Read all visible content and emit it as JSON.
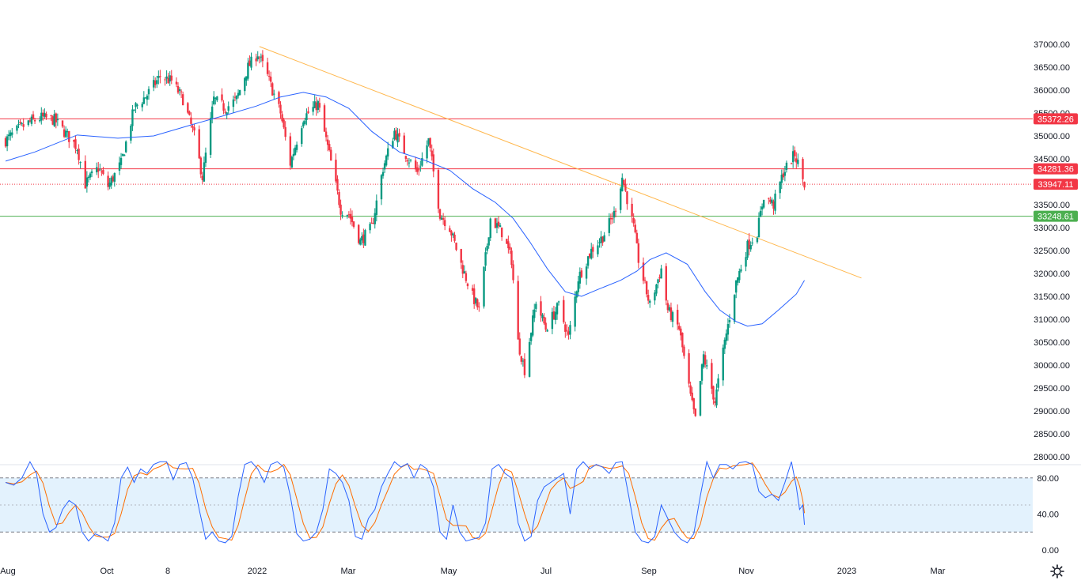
{
  "chart_data": [
    {
      "type": "candlestick",
      "price_axis": {
        "ylim": [
          28000,
          37000
        ],
        "ticks": [
          "37000.00",
          "36500.00",
          "36000.00",
          "35500.00",
          "35000.00",
          "34500.00",
          "34000.00",
          "33500.00",
          "33000.00",
          "32500.00",
          "32000.00",
          "31500.00",
          "31000.00",
          "30500.00",
          "30000.00",
          "29500.00",
          "29000.00",
          "28500.00",
          "28000.00"
        ]
      },
      "time_axis": {
        "ticks": [
          "Aug",
          "Oct",
          "8",
          "2022",
          "Mar",
          "May",
          "Jul",
          "Sep",
          "Nov",
          "2023",
          "Mar"
        ]
      },
      "close_path": [
        [
          "2021-08-02",
          34900
        ],
        [
          "2021-08-10",
          35150
        ],
        [
          "2021-08-17",
          35300
        ],
        [
          "2021-08-24",
          35400
        ],
        [
          "2021-09-01",
          35350
        ],
        [
          "2021-09-08",
          35050
        ],
        [
          "2021-09-15",
          34750
        ],
        [
          "2021-09-20",
          33950
        ],
        [
          "2021-09-28",
          34300
        ],
        [
          "2021-10-04",
          33900
        ],
        [
          "2021-10-12",
          34400
        ],
        [
          "2021-10-20",
          35600
        ],
        [
          "2021-10-28",
          35900
        ],
        [
          "2021-11-05",
          36300
        ],
        [
          "2021-11-12",
          36200
        ],
        [
          "2021-11-19",
          35800
        ],
        [
          "2021-11-26",
          35000
        ],
        [
          "2021-12-01",
          34100
        ],
        [
          "2021-12-08",
          35800
        ],
        [
          "2021-12-15",
          35600
        ],
        [
          "2021-12-22",
          35800
        ],
        [
          "2021-12-29",
          36500
        ],
        [
          "2022-01-04",
          36800
        ],
        [
          "2022-01-10",
          36300
        ],
        [
          "2022-01-18",
          35500
        ],
        [
          "2022-01-24",
          34400
        ],
        [
          "2022-02-01",
          35400
        ],
        [
          "2022-02-10",
          35700
        ],
        [
          "2022-02-17",
          34600
        ],
        [
          "2022-02-24",
          33400
        ],
        [
          "2022-03-01",
          33300
        ],
        [
          "2022-03-08",
          32700
        ],
        [
          "2022-03-15",
          33000
        ],
        [
          "2022-03-22",
          34300
        ],
        [
          "2022-03-29",
          35100
        ],
        [
          "2022-04-05",
          34600
        ],
        [
          "2022-04-12",
          34200
        ],
        [
          "2022-04-19",
          34900
        ],
        [
          "2022-04-26",
          33300
        ],
        [
          "2022-05-02",
          33000
        ],
        [
          "2022-05-09",
          32200
        ],
        [
          "2022-05-16",
          31500
        ],
        [
          "2022-05-20",
          31200
        ],
        [
          "2022-05-27",
          33200
        ],
        [
          "2022-06-03",
          32900
        ],
        [
          "2022-06-09",
          32300
        ],
        [
          "2022-06-13",
          30500
        ],
        [
          "2022-06-17",
          29900
        ],
        [
          "2022-06-24",
          31400
        ],
        [
          "2022-06-30",
          30800
        ],
        [
          "2022-07-08",
          31300
        ],
        [
          "2022-07-14",
          30600
        ],
        [
          "2022-07-20",
          31900
        ],
        [
          "2022-07-28",
          32500
        ],
        [
          "2022-08-04",
          32800
        ],
        [
          "2022-08-11",
          33300
        ],
        [
          "2022-08-16",
          34100
        ],
        [
          "2022-08-23",
          33000
        ],
        [
          "2022-08-26",
          32300
        ],
        [
          "2022-09-02",
          31300
        ],
        [
          "2022-09-09",
          32100
        ],
        [
          "2022-09-13",
          31200
        ],
        [
          "2022-09-20",
          30800
        ],
        [
          "2022-09-27",
          29300
        ],
        [
          "2022-09-30",
          28800
        ],
        [
          "2022-10-05",
          30200
        ],
        [
          "2022-10-12",
          29200
        ],
        [
          "2022-10-18",
          30500
        ],
        [
          "2022-10-25",
          31800
        ],
        [
          "2022-11-01",
          32600
        ],
        [
          "2022-11-07",
          32900
        ],
        [
          "2022-11-11",
          33700
        ],
        [
          "2022-11-17",
          33500
        ],
        [
          "2022-11-23",
          34200
        ],
        [
          "2022-11-30",
          34600
        ],
        [
          "2022-12-02",
          34400
        ],
        [
          "2022-12-06",
          33947
        ]
      ],
      "horizontal_levels": [
        {
          "label": "35372.26",
          "value": 35372.26,
          "color": "#f23645",
          "style": "solid"
        },
        {
          "label": "34281.36",
          "value": 34281.36,
          "color": "#f23645",
          "style": "solid"
        },
        {
          "label": "33947.11",
          "value": 33947.11,
          "color": "#f23645",
          "style": "dotted"
        },
        {
          "label": "33248.61",
          "value": 33248.61,
          "color": "#4caf50",
          "style": "solid"
        }
      ],
      "trendline": {
        "from": [
          "2022-01-05",
          36950
        ],
        "to": [
          "2023-01-10",
          31900
        ],
        "color": "#ffb74d"
      },
      "moving_average": {
        "color": "#2962ff",
        "points": [
          [
            "2021-08-02",
            34450
          ],
          [
            "2021-08-20",
            34650
          ],
          [
            "2021-09-15",
            35020
          ],
          [
            "2021-10-10",
            34950
          ],
          [
            "2021-11-01",
            35000
          ],
          [
            "2021-11-25",
            35250
          ],
          [
            "2021-12-15",
            35450
          ],
          [
            "2022-01-03",
            35650
          ],
          [
            "2022-01-18",
            35850
          ],
          [
            "2022-02-01",
            35950
          ],
          [
            "2022-02-15",
            35850
          ],
          [
            "2022-03-01",
            35600
          ],
          [
            "2022-03-15",
            35100
          ],
          [
            "2022-04-01",
            34650
          ],
          [
            "2022-04-18",
            34450
          ],
          [
            "2022-05-02",
            34250
          ],
          [
            "2022-05-16",
            33850
          ],
          [
            "2022-05-30",
            33550
          ],
          [
            "2022-06-10",
            33200
          ],
          [
            "2022-06-20",
            32700
          ],
          [
            "2022-07-01",
            32100
          ],
          [
            "2022-07-12",
            31600
          ],
          [
            "2022-07-22",
            31500
          ],
          [
            "2022-08-01",
            31650
          ],
          [
            "2022-08-15",
            31850
          ],
          [
            "2022-08-25",
            32050
          ],
          [
            "2022-09-02",
            32300
          ],
          [
            "2022-09-12",
            32450
          ],
          [
            "2022-09-25",
            32200
          ],
          [
            "2022-10-06",
            31600
          ],
          [
            "2022-10-15",
            31200
          ],
          [
            "2022-10-25",
            30950
          ],
          [
            "2022-11-01",
            30850
          ],
          [
            "2022-11-10",
            30900
          ],
          [
            "2022-11-20",
            31200
          ],
          [
            "2022-12-01",
            31550
          ],
          [
            "2022-12-06",
            31850
          ]
        ]
      },
      "x_domain": [
        "2021-07-15",
        "2023-04-10"
      ]
    },
    {
      "type": "line",
      "name": "oscillator",
      "ylim": [
        0,
        100
      ],
      "ticks": [
        "80.00",
        "40.00",
        "0.00"
      ],
      "band": [
        20,
        80
      ],
      "midline": 50,
      "fill_color": "#e3f2fd",
      "k_color": "#2962ff",
      "d_color": "#ff6d00",
      "points": [
        [
          "2021-08-02",
          75
        ],
        [
          "2021-08-07",
          72
        ],
        [
          "2021-08-12",
          80
        ],
        [
          "2021-08-17",
          98
        ],
        [
          "2021-08-21",
          85
        ],
        [
          "2021-08-25",
          40
        ],
        [
          "2021-08-29",
          20
        ],
        [
          "2021-09-02",
          25
        ],
        [
          "2021-09-06",
          45
        ],
        [
          "2021-09-10",
          55
        ],
        [
          "2021-09-14",
          50
        ],
        [
          "2021-09-18",
          20
        ],
        [
          "2021-09-22",
          10
        ],
        [
          "2021-09-26",
          18
        ],
        [
          "2021-09-30",
          15
        ],
        [
          "2021-10-04",
          10
        ],
        [
          "2021-10-08",
          30
        ],
        [
          "2021-10-12",
          80
        ],
        [
          "2021-10-16",
          92
        ],
        [
          "2021-10-20",
          75
        ],
        [
          "2021-10-24",
          90
        ],
        [
          "2021-10-28",
          85
        ],
        [
          "2021-11-01",
          95
        ],
        [
          "2021-11-05",
          98
        ],
        [
          "2021-11-09",
          98
        ],
        [
          "2021-11-13",
          78
        ],
        [
          "2021-11-17",
          95
        ],
        [
          "2021-11-21",
          97
        ],
        [
          "2021-11-25",
          80
        ],
        [
          "2021-11-29",
          45
        ],
        [
          "2021-12-03",
          12
        ],
        [
          "2021-12-07",
          20
        ],
        [
          "2021-12-11",
          10
        ],
        [
          "2021-12-15",
          8
        ],
        [
          "2021-12-19",
          15
        ],
        [
          "2021-12-23",
          60
        ],
        [
          "2021-12-27",
          95
        ],
        [
          "2021-12-31",
          98
        ],
        [
          "2022-01-04",
          90
        ],
        [
          "2022-01-08",
          75
        ],
        [
          "2022-01-12",
          95
        ],
        [
          "2022-01-16",
          98
        ],
        [
          "2022-01-20",
          92
        ],
        [
          "2022-01-24",
          60
        ],
        [
          "2022-01-28",
          18
        ],
        [
          "2022-02-01",
          10
        ],
        [
          "2022-02-05",
          12
        ],
        [
          "2022-02-09",
          20
        ],
        [
          "2022-02-13",
          45
        ],
        [
          "2022-02-17",
          90
        ],
        [
          "2022-02-21",
          85
        ],
        [
          "2022-02-25",
          75
        ],
        [
          "2022-03-01",
          55
        ],
        [
          "2022-03-05",
          15
        ],
        [
          "2022-03-09",
          12
        ],
        [
          "2022-03-13",
          35
        ],
        [
          "2022-03-17",
          45
        ],
        [
          "2022-03-21",
          70
        ],
        [
          "2022-03-25",
          85
        ],
        [
          "2022-03-29",
          98
        ],
        [
          "2022-04-02",
          92
        ],
        [
          "2022-04-06",
          96
        ],
        [
          "2022-04-10",
          80
        ],
        [
          "2022-04-14",
          95
        ],
        [
          "2022-04-18",
          90
        ],
        [
          "2022-04-22",
          70
        ],
        [
          "2022-04-26",
          20
        ],
        [
          "2022-04-30",
          12
        ],
        [
          "2022-05-04",
          50
        ],
        [
          "2022-05-08",
          20
        ],
        [
          "2022-05-12",
          10
        ],
        [
          "2022-05-16",
          12
        ],
        [
          "2022-05-20",
          14
        ],
        [
          "2022-05-24",
          30
        ],
        [
          "2022-05-28",
          90
        ],
        [
          "2022-06-01",
          95
        ],
        [
          "2022-06-05",
          85
        ],
        [
          "2022-06-09",
          80
        ],
        [
          "2022-06-13",
          30
        ],
        [
          "2022-06-17",
          10
        ],
        [
          "2022-06-21",
          15
        ],
        [
          "2022-06-25",
          55
        ],
        [
          "2022-06-29",
          70
        ],
        [
          "2022-07-03",
          75
        ],
        [
          "2022-07-07",
          80
        ],
        [
          "2022-07-11",
          85
        ],
        [
          "2022-07-15",
          40
        ],
        [
          "2022-07-19",
          90
        ],
        [
          "2022-07-23",
          98
        ],
        [
          "2022-07-27",
          90
        ],
        [
          "2022-07-31",
          95
        ],
        [
          "2022-08-04",
          92
        ],
        [
          "2022-08-08",
          85
        ],
        [
          "2022-08-12",
          97
        ],
        [
          "2022-08-16",
          98
        ],
        [
          "2022-08-20",
          60
        ],
        [
          "2022-08-24",
          20
        ],
        [
          "2022-08-28",
          10
        ],
        [
          "2022-09-01",
          8
        ],
        [
          "2022-09-05",
          15
        ],
        [
          "2022-09-09",
          50
        ],
        [
          "2022-09-13",
          35
        ],
        [
          "2022-09-17",
          20
        ],
        [
          "2022-09-21",
          12
        ],
        [
          "2022-09-25",
          8
        ],
        [
          "2022-09-29",
          18
        ],
        [
          "2022-10-03",
          60
        ],
        [
          "2022-10-07",
          98
        ],
        [
          "2022-10-11",
          80
        ],
        [
          "2022-10-15",
          95
        ],
        [
          "2022-10-19",
          95
        ],
        [
          "2022-10-23",
          90
        ],
        [
          "2022-10-27",
          97
        ],
        [
          "2022-10-31",
          98
        ],
        [
          "2022-11-04",
          95
        ],
        [
          "2022-11-08",
          65
        ],
        [
          "2022-11-12",
          58
        ],
        [
          "2022-11-16",
          62
        ],
        [
          "2022-11-20",
          55
        ],
        [
          "2022-11-24",
          75
        ],
        [
          "2022-11-28",
          98
        ],
        [
          "2022-12-01",
          70
        ],
        [
          "2022-12-03",
          45
        ],
        [
          "2022-12-05",
          50
        ],
        [
          "2022-12-06",
          28
        ]
      ]
    }
  ],
  "toolbar": {
    "settings_icon": "gear-icon"
  }
}
